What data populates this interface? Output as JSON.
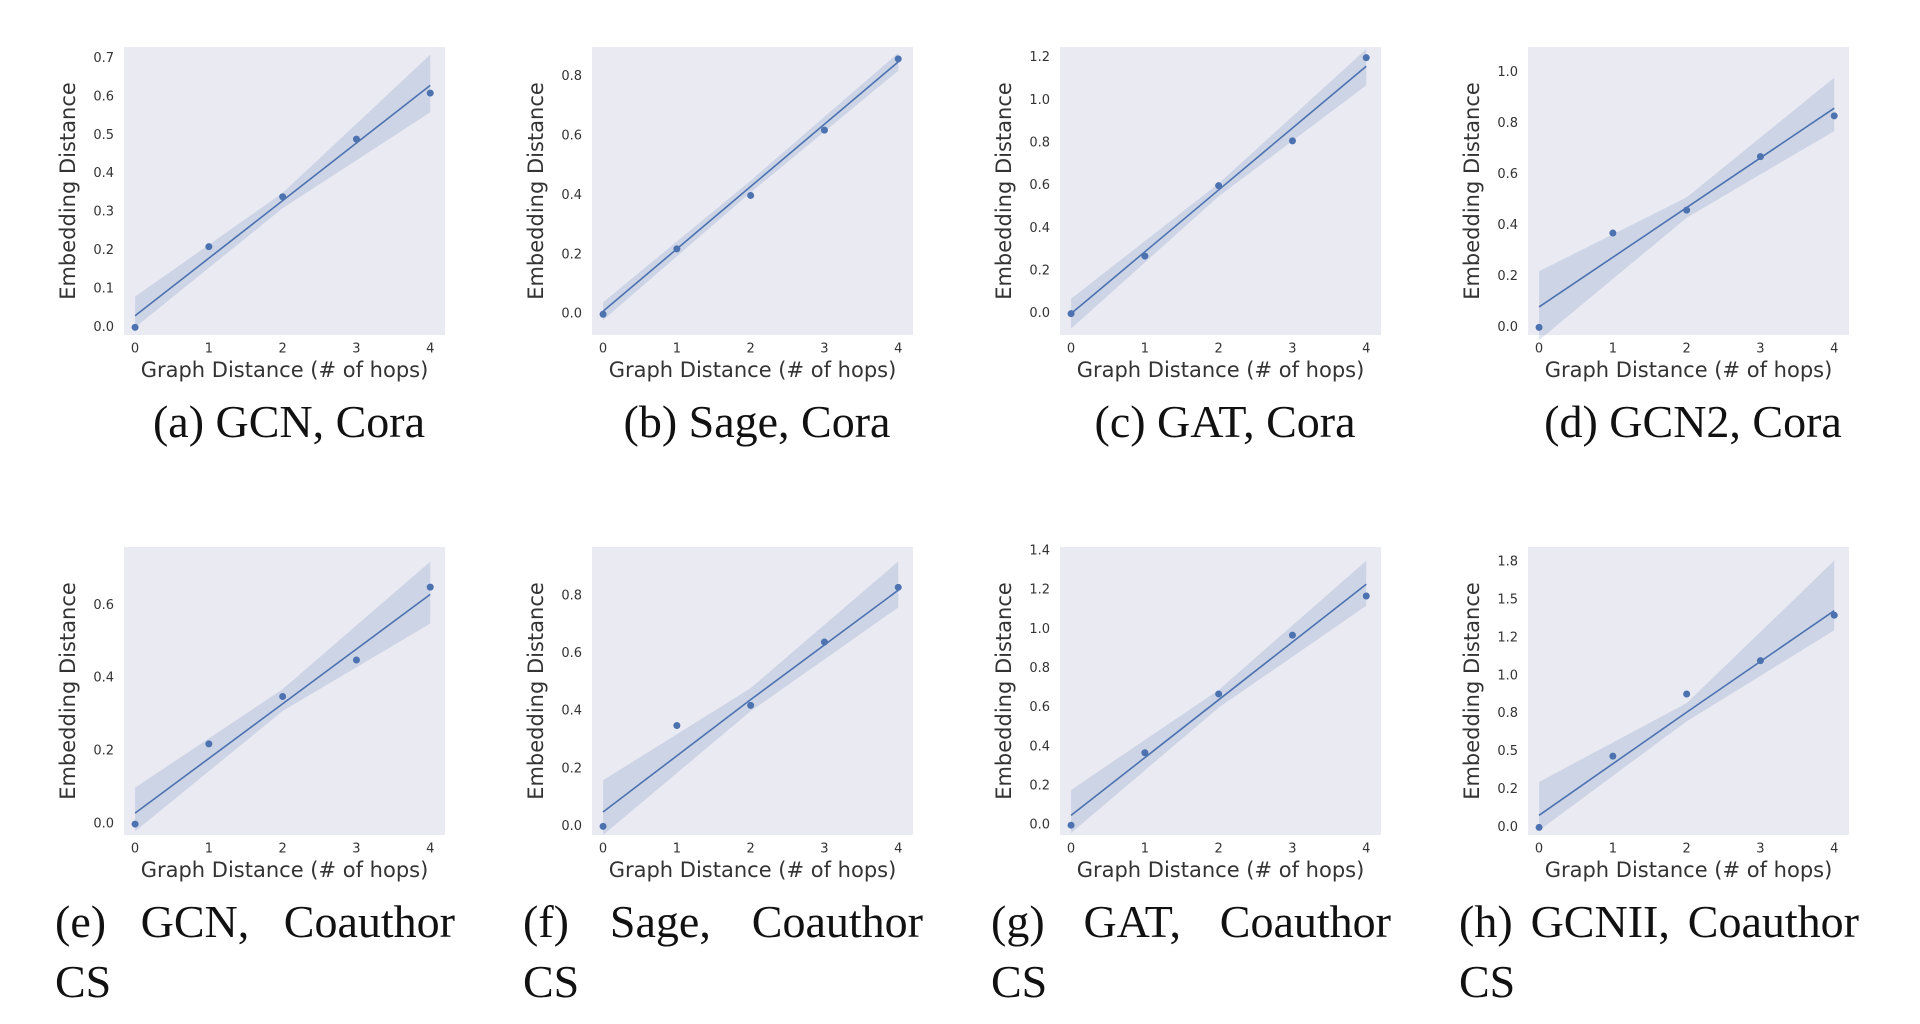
{
  "chart_data": [
    {
      "type": "scatter",
      "caption": "(a) GCN, Cora",
      "xlabel": "Graph Distance (# of hops)",
      "ylabel": "Embedding Distance",
      "color": "#4c72b0",
      "x": [
        0,
        1,
        2,
        3,
        4
      ],
      "values": [
        0.0,
        0.21,
        0.34,
        0.49,
        0.61
      ],
      "fit": {
        "x": [
          0,
          2,
          4
        ],
        "values": [
          0.03,
          0.33,
          0.63
        ],
        "lower": [
          0.0,
          0.31,
          0.56
        ],
        "upper": [
          0.08,
          0.35,
          0.71
        ]
      },
      "xlim": [
        -0.15,
        4.2
      ],
      "xticks": [
        0,
        1,
        2,
        3,
        4
      ],
      "ylim": [
        -0.02,
        0.73
      ],
      "yticks": [
        {
          "value": 0,
          "label": "0.0"
        },
        0.1,
        0.2,
        0.3,
        0.4,
        0.5,
        0.6,
        0.7
      ]
    },
    {
      "type": "scatter",
      "caption": "(b) Sage, Cora",
      "xlabel": "Graph Distance (# of hops)",
      "ylabel": "Embedding Distance",
      "color": "#4c72b0",
      "x": [
        0,
        1,
        2,
        3,
        4
      ],
      "values": [
        0.0,
        0.22,
        0.4,
        0.62,
        0.86
      ],
      "fit": {
        "x": [
          0,
          2,
          4
        ],
        "values": [
          0.01,
          0.43,
          0.85
        ],
        "lower": [
          -0.02,
          0.41,
          0.82
        ],
        "upper": [
          0.04,
          0.45,
          0.88
        ]
      },
      "xlim": [
        -0.15,
        4.2
      ],
      "xticks": [
        0,
        1,
        2,
        3,
        4
      ],
      "ylim": [
        -0.07,
        0.9
      ],
      "yticks": [
        {
          "value": 0,
          "label": "0.0"
        },
        0.2,
        0.4,
        0.6,
        0.8
      ]
    },
    {
      "type": "scatter",
      "caption": "(c) GAT, Cora",
      "xlabel": "Graph Distance (# of hops)",
      "ylabel": "Embedding Distance",
      "color": "#4c72b0",
      "x": [
        0,
        1,
        2,
        3,
        4
      ],
      "values": [
        0.0,
        0.27,
        0.6,
        0.81,
        1.2
      ],
      "fit": {
        "x": [
          0,
          2,
          4
        ],
        "values": [
          0.0,
          0.58,
          1.16
        ],
        "lower": [
          -0.07,
          0.55,
          1.07
        ],
        "upper": [
          0.07,
          0.61,
          1.24
        ]
      },
      "xlim": [
        -0.15,
        4.2
      ],
      "xticks": [
        0,
        1,
        2,
        3,
        4
      ],
      "ylim": [
        -0.1,
        1.25
      ],
      "yticks": [
        {
          "value": 0,
          "label": "0.0"
        },
        0.2,
        0.4,
        0.6,
        0.8,
        {
          "value": 1,
          "label": "1.0"
        },
        1.2
      ]
    },
    {
      "type": "scatter",
      "caption": "(d) GCN2, Cora",
      "xlabel": "Graph Distance (# of hops)",
      "ylabel": "Embedding Distance",
      "color": "#4c72b0",
      "x": [
        0,
        1,
        2,
        3,
        4
      ],
      "values": [
        0.0,
        0.37,
        0.46,
        0.67,
        0.83
      ],
      "fit": {
        "x": [
          0,
          2,
          4
        ],
        "values": [
          0.08,
          0.47,
          0.86
        ],
        "lower": [
          -0.05,
          0.43,
          0.77
        ],
        "upper": [
          0.22,
          0.51,
          0.98
        ]
      },
      "xlim": [
        -0.15,
        4.2
      ],
      "xticks": [
        0,
        1,
        2,
        3,
        4
      ],
      "ylim": [
        -0.03,
        1.1
      ],
      "yticks": [
        {
          "value": 0,
          "label": "0.0"
        },
        0.2,
        0.4,
        0.6,
        0.8,
        {
          "value": 1,
          "label": "1.0"
        }
      ]
    },
    {
      "type": "scatter",
      "caption": "(e) GCN, Coauthor CS",
      "xlabel": "Graph Distance (# of hops)",
      "ylabel": "Embedding Distance",
      "color": "#4c72b0",
      "x": [
        0,
        1,
        2,
        3,
        4
      ],
      "values": [
        0.0,
        0.22,
        0.35,
        0.45,
        0.65
      ],
      "fit": {
        "x": [
          0,
          2,
          4
        ],
        "values": [
          0.03,
          0.33,
          0.63
        ],
        "lower": [
          -0.02,
          0.31,
          0.55
        ],
        "upper": [
          0.1,
          0.37,
          0.72
        ]
      },
      "xlim": [
        -0.15,
        4.2
      ],
      "xticks": [
        0,
        1,
        2,
        3,
        4
      ],
      "ylim": [
        -0.03,
        0.76
      ],
      "yticks": [
        {
          "value": 0,
          "label": "0.0"
        },
        0.2,
        0.4,
        0.6
      ]
    },
    {
      "type": "scatter",
      "caption": "(f) Sage, Coauthor CS",
      "xlabel": "Graph Distance (# of hops)",
      "ylabel": "Embedding Distance",
      "color": "#4c72b0",
      "x": [
        0,
        1,
        2,
        3,
        4
      ],
      "values": [
        0.0,
        0.35,
        0.42,
        0.64,
        0.83
      ],
      "fit": {
        "x": [
          0,
          2,
          4
        ],
        "values": [
          0.05,
          0.44,
          0.82
        ],
        "lower": [
          -0.03,
          0.4,
          0.76
        ],
        "upper": [
          0.16,
          0.48,
          0.92
        ]
      },
      "xlim": [
        -0.15,
        4.2
      ],
      "xticks": [
        0,
        1,
        2,
        3,
        4
      ],
      "ylim": [
        -0.03,
        0.97
      ],
      "yticks": [
        {
          "value": 0,
          "label": "0.0"
        },
        0.2,
        0.4,
        0.6,
        0.8
      ]
    },
    {
      "type": "scatter",
      "caption": "(g) GAT, Coauthor CS",
      "xlabel": "Graph Distance (# of hops)",
      "ylabel": "Embedding Distance",
      "color": "#4c72b0",
      "x": [
        0,
        1,
        2,
        3,
        4
      ],
      "values": [
        0.0,
        0.37,
        0.67,
        0.97,
        1.17
      ],
      "fit": {
        "x": [
          0,
          2,
          4
        ],
        "values": [
          0.05,
          0.64,
          1.23
        ],
        "lower": [
          -0.04,
          0.6,
          1.12
        ],
        "upper": [
          0.18,
          0.69,
          1.35
        ]
      },
      "xlim": [
        -0.15,
        4.2
      ],
      "xticks": [
        0,
        1,
        2,
        3,
        4
      ],
      "ylim": [
        -0.05,
        1.42
      ],
      "yticks": [
        {
          "value": 0,
          "label": "0.0"
        },
        0.2,
        0.4,
        0.6,
        0.8,
        {
          "value": 1,
          "label": "1.0"
        },
        1.2,
        1.4
      ]
    },
    {
      "type": "scatter",
      "caption": "(h) GCNII, Coauthor CS",
      "xlabel": "Graph Distance (# of hops)",
      "ylabel": "Embedding Distance",
      "color": "#4c72b0",
      "x": [
        0,
        1,
        2,
        3,
        4
      ],
      "values": [
        0.0,
        0.47,
        0.88,
        1.1,
        1.4
      ],
      "fit": {
        "x": [
          0,
          2,
          4
        ],
        "values": [
          0.08,
          0.76,
          1.43
        ],
        "lower": [
          -0.02,
          0.7,
          1.3
        ],
        "upper": [
          0.3,
          0.82,
          1.76
        ]
      },
      "xlim": [
        -0.15,
        4.2
      ],
      "xticks": [
        0,
        1,
        2,
        3,
        4
      ],
      "ylim": [
        -0.05,
        1.85
      ],
      "yticks": [
        {
          "value": 0,
          "label": "0.0"
        },
        {
          "value": 0.25,
          "label": "0.2"
        },
        {
          "value": 0.5,
          "label": "0.5"
        },
        {
          "value": 0.75,
          "label": "0.8"
        },
        {
          "value": 1,
          "label": "1.0"
        },
        {
          "value": 1.25,
          "label": "1.2"
        },
        {
          "value": 1.5,
          "label": "1.5"
        },
        {
          "value": 1.75,
          "label": "1.8"
        }
      ]
    }
  ]
}
